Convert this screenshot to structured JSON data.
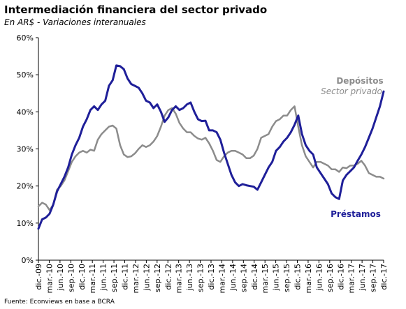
{
  "title": "Intermediación financiera del sector privado",
  "subtitle": "En AR$ - Variaciones interanuales",
  "source": "Fuente: Econviews en base a BCRA",
  "colors": {
    "depositos": "#8c8c8c",
    "prestamos": "#1f1f99",
    "axis": "#000000"
  },
  "chart_data": {
    "type": "line",
    "title": "Intermediación financiera del sector privado",
    "subtitle": "En AR$ - Variaciones interanuales",
    "y_tick_labels": [
      "0%",
      "10%",
      "20%",
      "30%",
      "40%",
      "50%",
      "60%"
    ],
    "ylim": [
      0,
      60
    ],
    "grid": false,
    "x_tick_labels": [
      "dic.-09",
      "mar.-10",
      "jun.-10",
      "sep.-10",
      "dic.-10",
      "mar.-11",
      "jun.-11",
      "sep.-11",
      "dic.-11",
      "mar.-12",
      "jun.-12",
      "sep.-12",
      "dic.-12",
      "mar.-13",
      "jun.-13",
      "sep.-13",
      "dic.-13",
      "mar.-14",
      "jun.-14",
      "sep.-14",
      "dic.-14",
      "mar.-15",
      "jun.-15",
      "sep.-15",
      "dic.-15",
      "mar.-16",
      "jun.-16",
      "sep.-16",
      "dic.-16",
      "mar.-17",
      "jun.-17",
      "sep.-17",
      "dic.-17"
    ],
    "series_labels": {
      "depositos_title": "Depósitos",
      "depositos_sub": "Sector privado",
      "prestamos": "Préstamos"
    },
    "series": [
      {
        "name": "Depósitos Sector privado",
        "values": [
          14.5,
          15.5,
          15,
          13.5,
          15,
          19,
          20,
          21.5,
          24,
          26.5,
          28,
          29,
          29.5,
          29,
          29.8,
          29.5,
          32.5,
          34,
          35,
          36,
          36.3,
          35.5,
          31,
          28.5,
          27.8,
          28,
          28.8,
          30,
          31,
          30.5,
          31,
          32,
          33.5,
          36,
          39,
          40.5,
          41,
          39.5,
          37,
          35.5,
          34.5,
          34.5,
          33.5,
          32.8,
          32.5,
          33,
          31.5,
          29.5,
          27,
          26.5,
          28,
          29,
          29.5,
          29.5,
          29,
          28.5,
          27.5,
          27.5,
          28.2,
          30,
          33,
          33.5,
          34,
          36,
          37.5,
          38,
          39,
          39,
          40.5,
          41.5,
          36,
          31,
          28,
          26.5,
          25,
          26.5,
          26.5,
          26,
          25.5,
          24.5,
          24.5,
          23.8,
          25,
          24.8,
          25.5,
          25.5,
          26,
          26.8,
          25.5,
          23.5,
          23,
          22.5,
          22.5,
          22
        ]
      },
      {
        "name": "Préstamos",
        "values": [
          8.5,
          11,
          11.5,
          12.5,
          15,
          18.5,
          20.5,
          22.5,
          25,
          28.5,
          31,
          33,
          36,
          38,
          40.5,
          41.5,
          40.5,
          42,
          43,
          47,
          48.5,
          52.5,
          52.3,
          51.5,
          49,
          47.5,
          47,
          46.5,
          45,
          43,
          42.5,
          41,
          42,
          40,
          37.3,
          38.5,
          40.5,
          41.5,
          40.5,
          41,
          42,
          42.5,
          40,
          38,
          37.5,
          37.6,
          35,
          35,
          34.5,
          32.5,
          29,
          26,
          23,
          21,
          20,
          20.5,
          20.2,
          20,
          19.8,
          19,
          21,
          23,
          25,
          26.5,
          29.5,
          30.5,
          32,
          33,
          34.5,
          36.5,
          39,
          34,
          31,
          29.5,
          28.5,
          25,
          23.5,
          22,
          20.5,
          18,
          17,
          16.5,
          21.5,
          23,
          24,
          25,
          26.8,
          28.5,
          30.5,
          33,
          35.5,
          38.5,
          41.5,
          45.5
        ]
      }
    ]
  }
}
